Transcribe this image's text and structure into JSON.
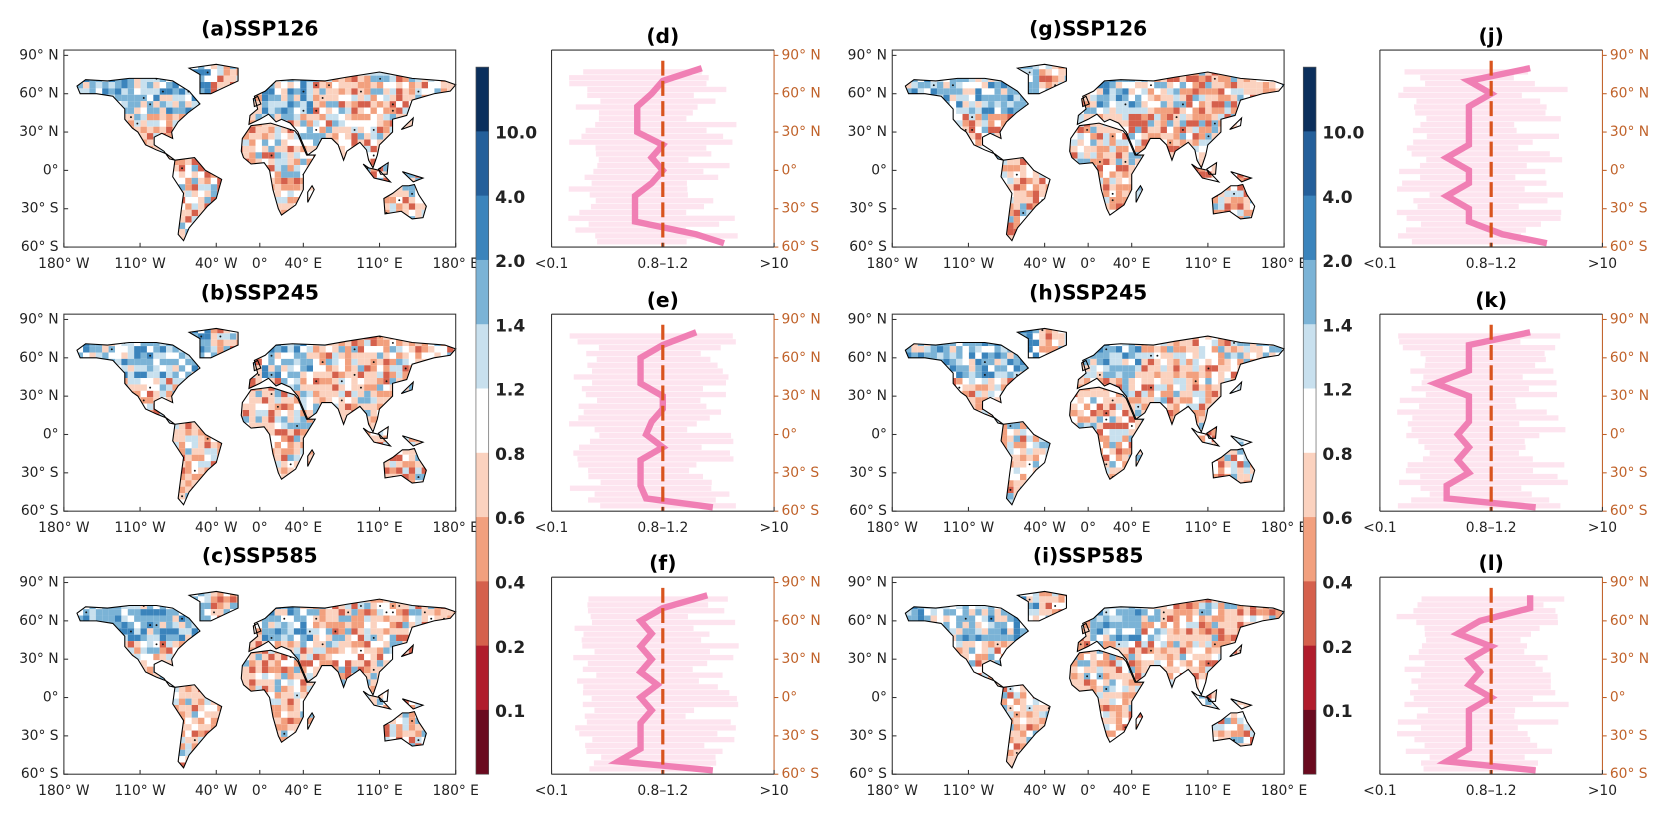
{
  "colorbar": {
    "labels": [
      "10.0",
      "4.0",
      "2.0",
      "1.4",
      "1.2",
      "0.8",
      "0.6",
      "0.4",
      "0.2",
      "0.1"
    ],
    "colors": [
      "#0b2f5c",
      "#245f9a",
      "#3b84bc",
      "#7bb3d6",
      "#c8e0ee",
      "#ffffff",
      "#fbd2bf",
      "#f2a07e",
      "#d5604c",
      "#b01c2c",
      "#6a0a1f"
    ]
  },
  "map_lat_ticks": [
    {
      "value": 90,
      "label": "90° N"
    },
    {
      "value": 60,
      "label": "60° N"
    },
    {
      "value": 30,
      "label": "30° N"
    },
    {
      "value": 0,
      "label": "0°"
    },
    {
      "value": -30,
      "label": "30° S"
    },
    {
      "value": -60,
      "label": "60° S"
    }
  ],
  "map_lon_ticks": [
    {
      "value": -180,
      "label": "180° W"
    },
    {
      "value": -110,
      "label": "110° W"
    },
    {
      "value": -40,
      "label": "40° W"
    },
    {
      "value": 0,
      "label": "0°"
    },
    {
      "value": 40,
      "label": "40° E"
    },
    {
      "value": 110,
      "label": "110° E"
    },
    {
      "value": 180,
      "label": "180° E"
    }
  ],
  "profile_lat_ticks": [
    {
      "value": 90,
      "label": "90° N"
    },
    {
      "value": 60,
      "label": "60° N"
    },
    {
      "value": 30,
      "label": "30° N"
    },
    {
      "value": 0,
      "label": "0°"
    },
    {
      "value": -30,
      "label": "30° S"
    },
    {
      "value": -60,
      "label": "60° S"
    }
  ],
  "profile_x_ticks": [
    {
      "value": 0,
      "label": "<0.1"
    },
    {
      "value": 1,
      "label": "0.8–1.2"
    },
    {
      "value": 2,
      "label": ">10"
    }
  ],
  "profile_latitudes": [
    80,
    70,
    60,
    50,
    40,
    30,
    20,
    10,
    0,
    -10,
    -20,
    -30,
    -40,
    -50,
    -57
  ],
  "maps": [
    {
      "title": "(a)SSP126"
    },
    {
      "title": "(b)SSP245"
    },
    {
      "title": "(c)SSP585"
    },
    {
      "title": "(g)SSP126"
    },
    {
      "title": "(h)SSP245"
    },
    {
      "title": "(i)SSP585"
    }
  ],
  "profiles": [
    {
      "title": "(d)",
      "values": [
        1.35,
        1.0,
        0.9,
        0.77,
        0.77,
        0.77,
        1.0,
        0.9,
        1.0,
        0.9,
        0.75,
        0.75,
        0.75,
        1.3,
        1.55
      ]
    },
    {
      "title": "(e)",
      "values": [
        1.3,
        1.0,
        0.8,
        0.8,
        0.8,
        1.0,
        1.0,
        0.9,
        0.85,
        1.0,
        0.8,
        0.8,
        0.8,
        0.85,
        1.45
      ]
    },
    {
      "title": "(f)",
      "values": [
        1.4,
        1.0,
        0.8,
        0.9,
        0.8,
        0.9,
        0.8,
        0.95,
        0.8,
        0.9,
        0.8,
        0.8,
        0.8,
        0.6,
        1.45
      ]
    },
    {
      "title": "(j)",
      "values": [
        1.35,
        0.8,
        1.0,
        0.8,
        0.8,
        0.8,
        0.8,
        0.6,
        0.8,
        0.8,
        0.6,
        0.8,
        0.8,
        1.1,
        1.5
      ]
    },
    {
      "title": "(k)",
      "values": [
        1.35,
        0.8,
        0.8,
        0.8,
        0.5,
        0.8,
        0.8,
        0.8,
        0.7,
        0.8,
        0.7,
        0.8,
        0.6,
        0.6,
        1.4
      ]
    },
    {
      "title": "(l)",
      "values": [
        1.35,
        1.35,
        0.9,
        0.7,
        1.0,
        0.8,
        0.9,
        0.8,
        1.0,
        0.8,
        0.8,
        0.8,
        0.8,
        0.6,
        1.4
      ]
    }
  ]
}
